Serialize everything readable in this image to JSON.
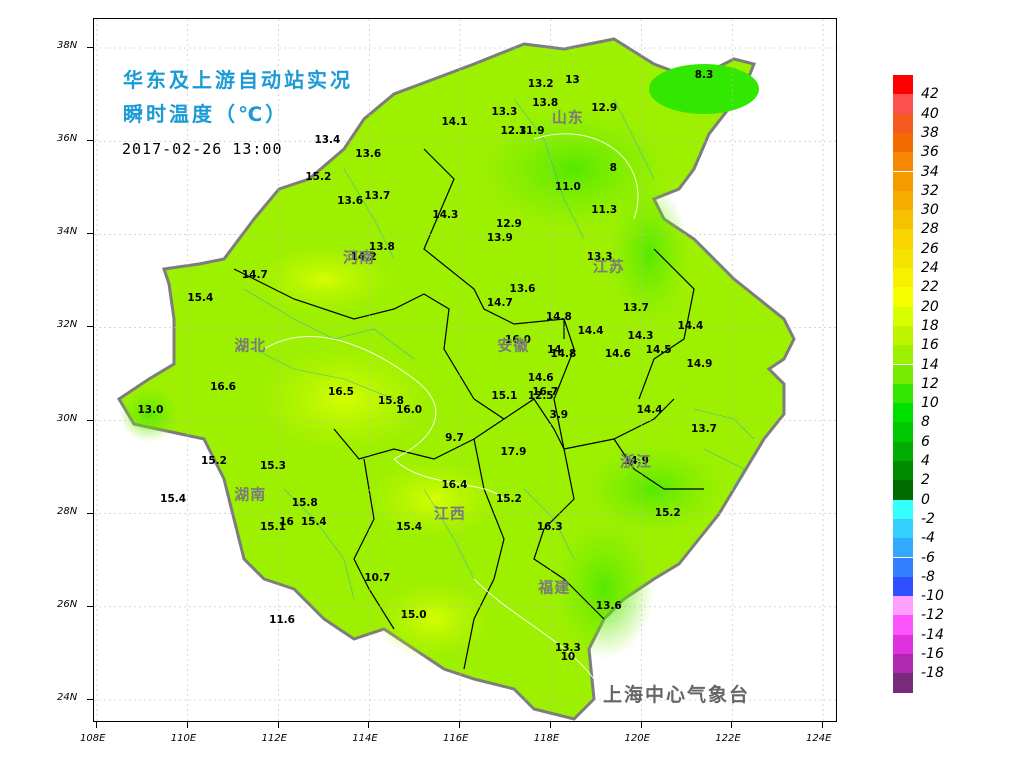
{
  "title": {
    "line1": "华东及上游自动站实况",
    "line2": "瞬时温度（℃）",
    "datetime": "2017-02-26 13:00"
  },
  "credit": "上海中心气象台",
  "axes": {
    "x_ticks": [
      "108E",
      "110E",
      "112E",
      "114E",
      "116E",
      "118E",
      "120E",
      "122E",
      "124E"
    ],
    "y_ticks": [
      "24N",
      "26N",
      "28N",
      "30N",
      "32N",
      "34N",
      "36N",
      "38N"
    ]
  },
  "provinces": [
    {
      "name": "山东",
      "lon": 118.4,
      "lat": 36.5
    },
    {
      "name": "河南",
      "lon": 113.8,
      "lat": 33.5
    },
    {
      "name": "江苏",
      "lon": 119.3,
      "lat": 33.3
    },
    {
      "name": "安徽",
      "lon": 117.2,
      "lat": 31.6
    },
    {
      "name": "湖北",
      "lon": 111.4,
      "lat": 31.6
    },
    {
      "name": "浙江",
      "lon": 119.9,
      "lat": 29.1
    },
    {
      "name": "湖南",
      "lon": 111.4,
      "lat": 28.4
    },
    {
      "name": "江西",
      "lon": 115.8,
      "lat": 28.0
    },
    {
      "name": "福建",
      "lon": 118.1,
      "lat": 26.4
    }
  ],
  "stations": [
    {
      "v": "13.2",
      "lon": 117.8,
      "lat": 37.2
    },
    {
      "v": "13",
      "lon": 118.5,
      "lat": 37.3
    },
    {
      "v": "8.3",
      "lon": 121.4,
      "lat": 37.4
    },
    {
      "v": "13.3",
      "lon": 117.0,
      "lat": 36.6
    },
    {
      "v": "13.8",
      "lon": 117.9,
      "lat": 36.8
    },
    {
      "v": "12.9",
      "lon": 119.2,
      "lat": 36.7
    },
    {
      "v": "14.1",
      "lon": 115.9,
      "lat": 36.4
    },
    {
      "v": "12.3",
      "lon": 117.2,
      "lat": 36.2
    },
    {
      "v": "11.9",
      "lon": 117.6,
      "lat": 36.2
    },
    {
      "v": "13.4",
      "lon": 113.1,
      "lat": 36.0
    },
    {
      "v": "13.6",
      "lon": 114.0,
      "lat": 35.7
    },
    {
      "v": "8",
      "lon": 119.4,
      "lat": 35.4
    },
    {
      "v": "15.2",
      "lon": 112.9,
      "lat": 35.2
    },
    {
      "v": "11.0",
      "lon": 118.4,
      "lat": 35.0
    },
    {
      "v": "13.6",
      "lon": 113.6,
      "lat": 34.7
    },
    {
      "v": "13.7",
      "lon": 114.2,
      "lat": 34.8
    },
    {
      "v": "11.3",
      "lon": 119.2,
      "lat": 34.5
    },
    {
      "v": "14.3",
      "lon": 115.7,
      "lat": 34.4
    },
    {
      "v": "12.9",
      "lon": 117.1,
      "lat": 34.2
    },
    {
      "v": "13.9",
      "lon": 116.9,
      "lat": 33.9
    },
    {
      "v": "13.8",
      "lon": 114.3,
      "lat": 33.7
    },
    {
      "v": "14.2",
      "lon": 113.9,
      "lat": 33.5
    },
    {
      "v": "13.3",
      "lon": 119.1,
      "lat": 33.5
    },
    {
      "v": "14.7",
      "lon": 111.5,
      "lat": 33.1
    },
    {
      "v": "13.6",
      "lon": 117.4,
      "lat": 32.8
    },
    {
      "v": "15.4",
      "lon": 110.3,
      "lat": 32.6
    },
    {
      "v": "14.7",
      "lon": 116.9,
      "lat": 32.5
    },
    {
      "v": "13.7",
      "lon": 119.9,
      "lat": 32.4
    },
    {
      "v": "14.8",
      "lon": 118.2,
      "lat": 32.2
    },
    {
      "v": "14.4",
      "lon": 121.1,
      "lat": 32.0
    },
    {
      "v": "14.4",
      "lon": 118.9,
      "lat": 31.9
    },
    {
      "v": "14.3",
      "lon": 120.0,
      "lat": 31.8
    },
    {
      "v": "16.0",
      "lon": 117.3,
      "lat": 31.7
    },
    {
      "v": "14.5",
      "lon": 120.4,
      "lat": 31.5
    },
    {
      "v": "14",
      "lon": 118.1,
      "lat": 31.5
    },
    {
      "v": "14.6",
      "lon": 119.5,
      "lat": 31.4
    },
    {
      "v": "14.8",
      "lon": 118.3,
      "lat": 31.4
    },
    {
      "v": "14.9",
      "lon": 121.3,
      "lat": 31.2
    },
    {
      "v": "14.6",
      "lon": 117.8,
      "lat": 30.9
    },
    {
      "v": "16.6",
      "lon": 110.8,
      "lat": 30.7
    },
    {
      "v": "16.5",
      "lon": 113.4,
      "lat": 30.6
    },
    {
      "v": "16.7",
      "lon": 117.9,
      "lat": 30.6
    },
    {
      "v": "15.1",
      "lon": 117.0,
      "lat": 30.5
    },
    {
      "v": "12.5",
      "lon": 117.8,
      "lat": 30.5
    },
    {
      "v": "15.8",
      "lon": 114.5,
      "lat": 30.4
    },
    {
      "v": "14.4",
      "lon": 120.2,
      "lat": 30.2
    },
    {
      "v": "16.0",
      "lon": 114.9,
      "lat": 30.2
    },
    {
      "v": "3.9",
      "lon": 118.2,
      "lat": 30.1
    },
    {
      "v": "13.0",
      "lon": 109.2,
      "lat": 30.2
    },
    {
      "v": "13.7",
      "lon": 121.4,
      "lat": 29.8
    },
    {
      "v": "9.7",
      "lon": 115.9,
      "lat": 29.6
    },
    {
      "v": "17.9",
      "lon": 117.2,
      "lat": 29.3
    },
    {
      "v": "15.2",
      "lon": 110.6,
      "lat": 29.1
    },
    {
      "v": "15.3",
      "lon": 111.9,
      "lat": 29.0
    },
    {
      "v": "14.9",
      "lon": 119.9,
      "lat": 29.1
    },
    {
      "v": "16.4",
      "lon": 115.9,
      "lat": 28.6
    },
    {
      "v": "15.4",
      "lon": 109.7,
      "lat": 28.3
    },
    {
      "v": "15.8",
      "lon": 112.6,
      "lat": 28.2
    },
    {
      "v": "15.2",
      "lon": 117.1,
      "lat": 28.3
    },
    {
      "v": "15.2",
      "lon": 120.6,
      "lat": 28.0
    },
    {
      "v": "16",
      "lon": 112.2,
      "lat": 27.8
    },
    {
      "v": "15.4",
      "lon": 112.8,
      "lat": 27.8
    },
    {
      "v": "15.1",
      "lon": 111.9,
      "lat": 27.7
    },
    {
      "v": "15.4",
      "lon": 114.9,
      "lat": 27.7
    },
    {
      "v": "16.3",
      "lon": 118.0,
      "lat": 27.7
    },
    {
      "v": "10.7",
      "lon": 114.2,
      "lat": 26.6
    },
    {
      "v": "13.6",
      "lon": 119.3,
      "lat": 26.0
    },
    {
      "v": "15.0",
      "lon": 115.0,
      "lat": 25.8
    },
    {
      "v": "11.6",
      "lon": 112.1,
      "lat": 25.7
    },
    {
      "v": "13.3",
      "lon": 118.4,
      "lat": 25.1
    },
    {
      "v": "10",
      "lon": 118.4,
      "lat": 24.9
    }
  ],
  "legend": {
    "labels": [
      "42",
      "40",
      "38",
      "36",
      "34",
      "32",
      "30",
      "28",
      "26",
      "24",
      "22",
      "20",
      "18",
      "16",
      "14",
      "12",
      "10",
      "8",
      "6",
      "4",
      "2",
      "0",
      "-2",
      "-4",
      "-6",
      "-8",
      "-10",
      "-12",
      "-14",
      "-16",
      "-18"
    ],
    "colors": [
      "#ff0000",
      "#ff5050",
      "#f55a1e",
      "#f26b00",
      "#f58a00",
      "#f59b00",
      "#f5ae00",
      "#f7c100",
      "#f8d400",
      "#f5e200",
      "#f7f000",
      "#f5ff00",
      "#d8ff00",
      "#bef400",
      "#9cf000",
      "#78ec00",
      "#33e800",
      "#00e000",
      "#00c800",
      "#00ad00",
      "#008a00",
      "#006b00",
      "#33ffff",
      "#33cfff",
      "#33a8ff",
      "#3580ff",
      "#3050ff",
      "#ffa0ff",
      "#ff55ff",
      "#e030e0",
      "#b028b0",
      "#7a2a7a"
    ]
  }
}
